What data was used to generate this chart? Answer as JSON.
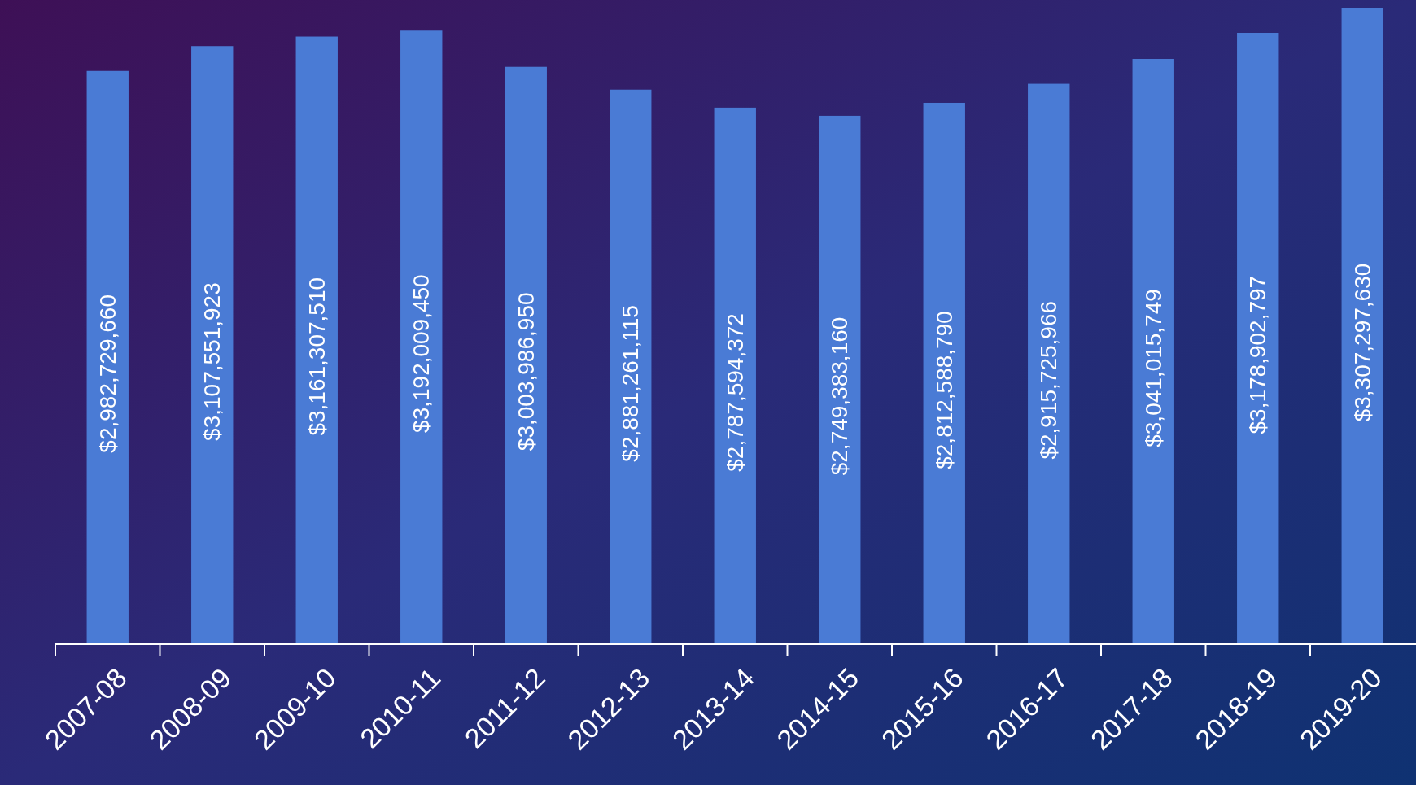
{
  "chart_data": {
    "type": "bar",
    "categories": [
      "2007-08",
      "2008-09",
      "2009-10",
      "2010-11",
      "2011-12",
      "2012-13",
      "2013-14",
      "2014-15",
      "2015-16",
      "2016-17",
      "2017-18",
      "2018-19",
      "2019-20"
    ],
    "values": [
      2982729660,
      3107551923,
      3161307510,
      3192009450,
      3003986950,
      2881261115,
      2787594372,
      2749383160,
      2812588790,
      2915725966,
      3041015749,
      3178902797,
      3307297630
    ],
    "value_labels": [
      "$2,982,729,660",
      "$3,107,551,923",
      "$3,161,307,510",
      "$3,192,009,450",
      "$3,003,986,950",
      "$2,881,261,115",
      "$2,787,594,372",
      "$2,749,383,160",
      "$2,812,588,790",
      "$2,915,725,966",
      "$3,041,015,749",
      "$3,178,902,797",
      "$3,307,297,630"
    ],
    "color": "#4a7bd5"
  }
}
